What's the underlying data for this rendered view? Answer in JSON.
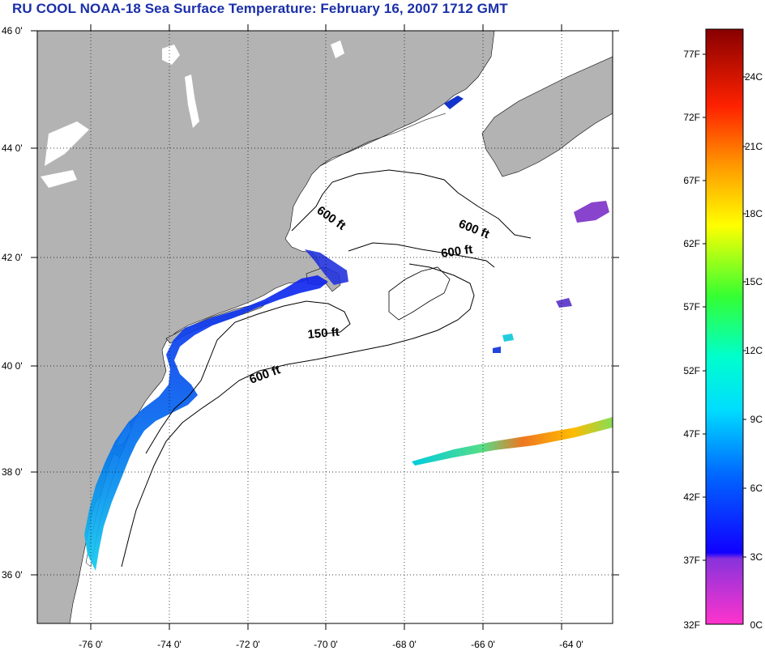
{
  "title": "RU COOL  NOAA-18  Sea Surface Temperature:  February 16, 2007 1712 GMT",
  "colors": {
    "title": "#1a2fa8",
    "land": "#b3b3b3",
    "ocean": "#ffffff",
    "grid": "#000000"
  },
  "map": {
    "lat_ticks": [
      {
        "label": "46 0'",
        "value": 46
      },
      {
        "label": "44 0'",
        "value": 44
      },
      {
        "label": "42 0'",
        "value": 42
      },
      {
        "label": "40 0'",
        "value": 40
      },
      {
        "label": "38 0'",
        "value": 38
      },
      {
        "label": "36 0'",
        "value": 36
      }
    ],
    "lon_ticks": [
      {
        "label": "-76 0'",
        "value": -76
      },
      {
        "label": "-74 0'",
        "value": -74
      },
      {
        "label": "-72 0'",
        "value": -72
      },
      {
        "label": "-70 0'",
        "value": -70
      },
      {
        "label": "-68 0'",
        "value": -68
      },
      {
        "label": "-66 0'",
        "value": -66
      },
      {
        "label": "-64 0'",
        "value": -64
      }
    ],
    "contour_labels": [
      {
        "text": "600 ft"
      },
      {
        "text": "600 ft"
      },
      {
        "text": "600 ft"
      },
      {
        "text": "150 ft"
      },
      {
        "text": "600 ft"
      }
    ]
  },
  "colorbar": {
    "fahrenheit": [
      "77F",
      "72F",
      "67F",
      "62F",
      "57F",
      "52F",
      "47F",
      "42F",
      "37F",
      "32F"
    ],
    "celsius": [
      "24C",
      "21C",
      "18C",
      "15C",
      "12C",
      "9C",
      "6C",
      "3C",
      "0C"
    ]
  }
}
